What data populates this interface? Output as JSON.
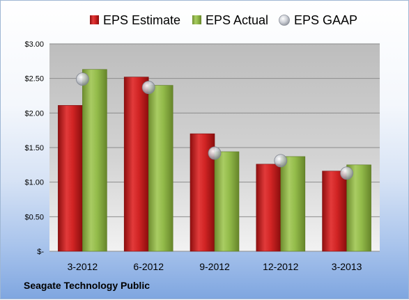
{
  "company_name": "Seagate Technology Public",
  "colors": {
    "estimate": "#cc1f1f",
    "actual": "#8db543",
    "gaap": "#c8ccd4"
  },
  "chart_data": {
    "type": "bar",
    "title": "",
    "xlabel": "",
    "ylabel": "",
    "categories": [
      "3-2012",
      "6-2012",
      "9-2012",
      "12-2012",
      "3-2013"
    ],
    "ylim": [
      0,
      3
    ],
    "yticks": [
      0,
      0.5,
      1.0,
      1.5,
      2.0,
      2.5,
      3.0
    ],
    "ytick_labels": [
      "$-",
      "$0.50",
      "$1.00",
      "$1.50",
      "$2.00",
      "$2.50",
      "$3.00"
    ],
    "grid": true,
    "legend_position": "top",
    "series": [
      {
        "name": "EPS Estimate",
        "kind": "bar",
        "values": [
          2.11,
          2.52,
          1.7,
          1.26,
          1.16
        ]
      },
      {
        "name": "EPS Actual",
        "kind": "bar",
        "values": [
          2.63,
          2.4,
          1.44,
          1.37,
          1.25
        ]
      },
      {
        "name": "EPS GAAP",
        "kind": "marker",
        "values": [
          2.49,
          2.37,
          1.42,
          1.31,
          1.13
        ]
      }
    ]
  }
}
